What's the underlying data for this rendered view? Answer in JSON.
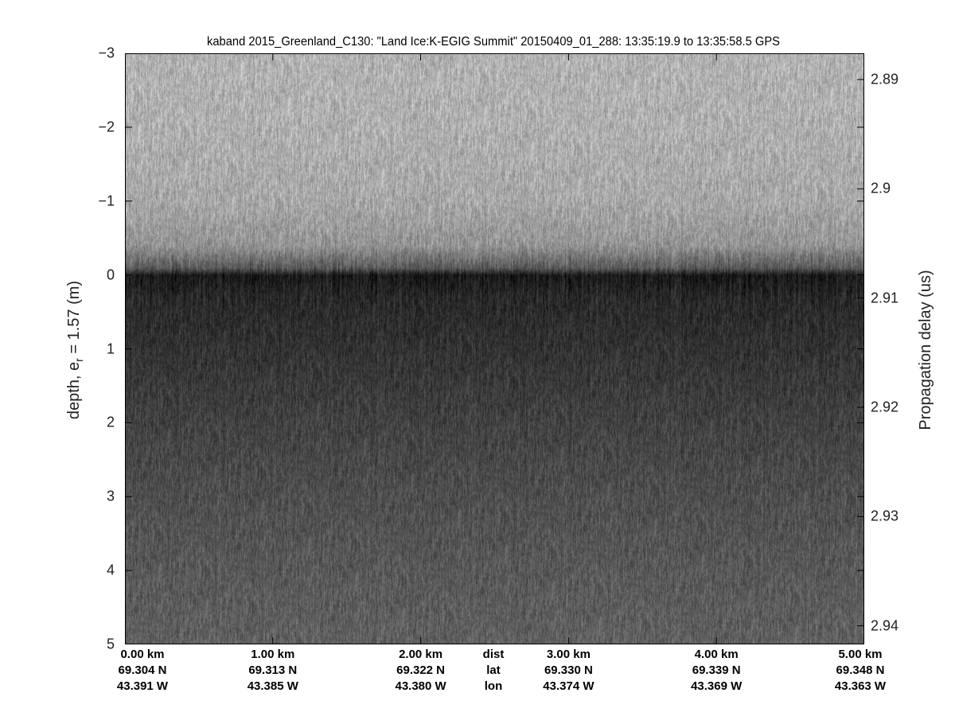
{
  "chart_data": {
    "type": "heatmap",
    "title": "kaband 2015_Greenland_C130: \"Land Ice:K-EGIG Summit\"  20150409_01_288: 13:35:19.9 to 13:35:58.5 GPS",
    "ylabel_left": "depth, e",
    "ylabel_left_sub": "r",
    "ylabel_left_tail": " = 1.57 (m)",
    "ylabel_right": "Propagation delay (us)",
    "ylim_left": [
      -3,
      5
    ],
    "y_ticks_left": [
      "-3",
      "-2",
      "-1",
      "0",
      "1",
      "2",
      "3",
      "4",
      "5"
    ],
    "y_ticks_left_values": [
      -3,
      -2,
      -1,
      0,
      1,
      2,
      3,
      4,
      5
    ],
    "y_ticks_right": [
      "2.89",
      "2.9",
      "2.91",
      "2.92",
      "2.93",
      "2.94"
    ],
    "y_ticks_right_values": [
      2.89,
      2.9,
      2.91,
      2.92,
      2.93,
      2.94
    ],
    "y_right_range_us": [
      2.8876,
      2.9417
    ],
    "x_row_labels": [
      "dist",
      "lat",
      "lon"
    ],
    "x_ticks": [
      {
        "dist": "0.00 km",
        "lat": "69.304 N",
        "lon": "43.391 W"
      },
      {
        "dist": "1.00 km",
        "lat": "69.313 N",
        "lon": "43.385 W"
      },
      {
        "dist": "2.00 km",
        "lat": "69.322 N",
        "lon": "43.380 W"
      },
      {
        "dist": "3.00 km",
        "lat": "69.330 N",
        "lon": "43.374 W"
      },
      {
        "dist": "4.00 km",
        "lat": "69.339 N",
        "lon": "43.369 W"
      },
      {
        "dist": "5.00 km",
        "lat": "69.348 N",
        "lon": "43.363 W"
      }
    ],
    "x_tick_values_km": [
      0,
      1,
      2,
      3,
      4,
      5
    ],
    "xlim_km": [
      0,
      5
    ],
    "colormap": "gray",
    "surface_depth_m": 0,
    "mean_gray_profile": {
      "depth_m": [
        -3,
        -2,
        -1,
        -0.4,
        -0.1,
        0,
        0.3,
        1,
        2,
        3,
        4,
        5
      ],
      "gray_level": [
        0.7,
        0.69,
        0.66,
        0.58,
        0.35,
        0.1,
        0.16,
        0.2,
        0.26,
        0.31,
        0.35,
        0.38
      ]
    },
    "grid": false
  }
}
